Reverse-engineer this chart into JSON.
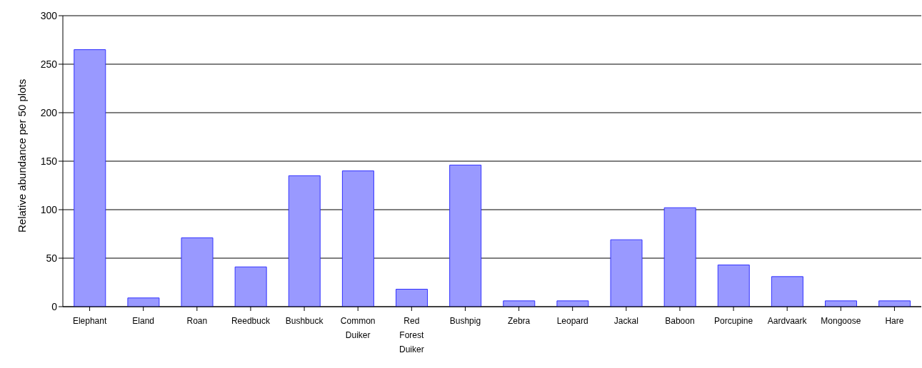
{
  "chart_data": {
    "type": "bar",
    "ylabel": "Relative abundance per 50 plots",
    "categories": [
      "Elephant",
      "Eland",
      "Roan",
      "Reedbuck",
      "Bushbuck",
      "Common Duiker",
      "Red Forest Duiker",
      "Bushpig",
      "Zebra",
      "Leopard",
      "Jackal",
      "Baboon",
      "Porcupine",
      "Aardvaark",
      "Mongoose",
      "Hare"
    ],
    "values": [
      265,
      9,
      71,
      41,
      135,
      140,
      18,
      146,
      6,
      6,
      69,
      102,
      43,
      31,
      6,
      6
    ],
    "color": "#9999ff",
    "ylim": [
      0,
      300
    ],
    "yticks": [
      0,
      50,
      100,
      150,
      200,
      250,
      300
    ],
    "grid": "y",
    "legend": false
  }
}
